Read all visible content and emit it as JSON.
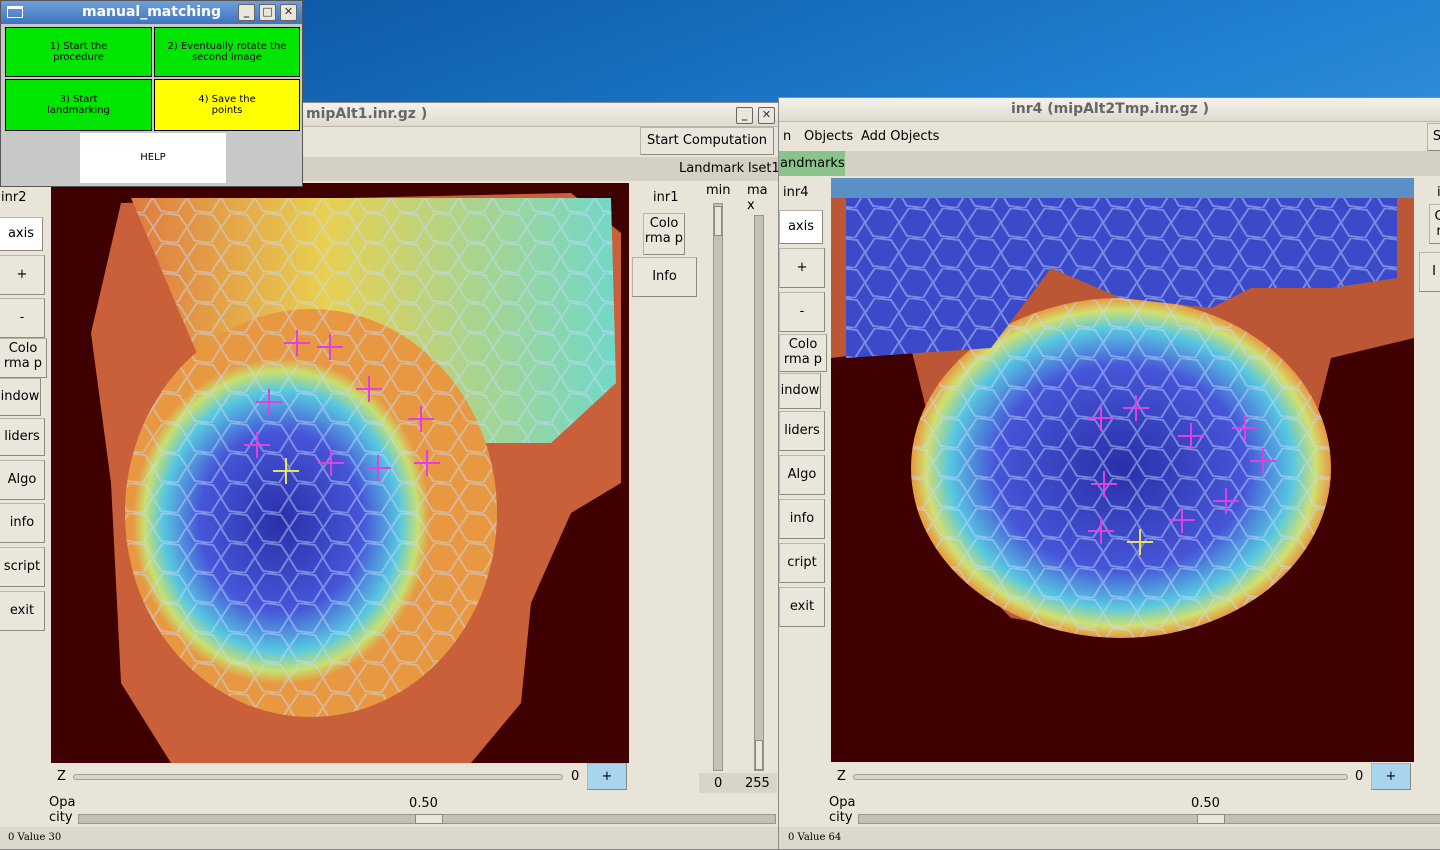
{
  "win_left": {
    "title": "mipAlt1.inr.gz  )",
    "start_computation": "Start Computation",
    "landmark_label": "Landmark",
    "lset_label": "lset1",
    "left_toolbar": [
      "inr2",
      "axis",
      "+",
      "-",
      "Colo rma p",
      "indow",
      "liders",
      "Algo",
      "info",
      "script",
      "exit"
    ],
    "inr_label": "inr1",
    "colormap_btn": "Colo rma p",
    "info_btn": "Info",
    "min_label": "min",
    "max_label": "ma x",
    "min_value": "0",
    "max_value": "255",
    "z_label": "Z",
    "z_value": "0",
    "z_plus": "+",
    "opacity_label": "Opa city",
    "opacity_value": "0.50",
    "status": "0 Value  30"
  },
  "win_right": {
    "title": "inr4 (mipAlt2Tmp.inr.gz  )",
    "menu": [
      "n",
      "Objects",
      "Add Objects"
    ],
    "landmarks_tab": "andmarks",
    "left_toolbar": [
      "inr4",
      "axis",
      "+",
      "-",
      "Colo rma p",
      "indow",
      "liders",
      "Algo",
      "info",
      "cript",
      "exit"
    ],
    "z_label": "Z",
    "z_value": "0",
    "z_plus": "+",
    "opacity_label": "Opa city",
    "opacity_value": "0.50",
    "status": "0 Value  64",
    "right_edge_s": "S",
    "right_edge_i": "i",
    "right_edge_c": "C r",
    "right_edge_l": "I"
  },
  "manual_matching": {
    "title": "manual_matching",
    "buttons": {
      "start": "1) Start the procedure",
      "rotate": "2) Eventually rotate the second image",
      "landmark": "3) Start landmarking",
      "save": "4) Save the points",
      "help": "HELP"
    },
    "colors": {
      "green": "#00e600",
      "yellow": "#ffff00"
    }
  },
  "window_buttons": {
    "minimize": "_",
    "maximize": "□",
    "close": "✕"
  }
}
